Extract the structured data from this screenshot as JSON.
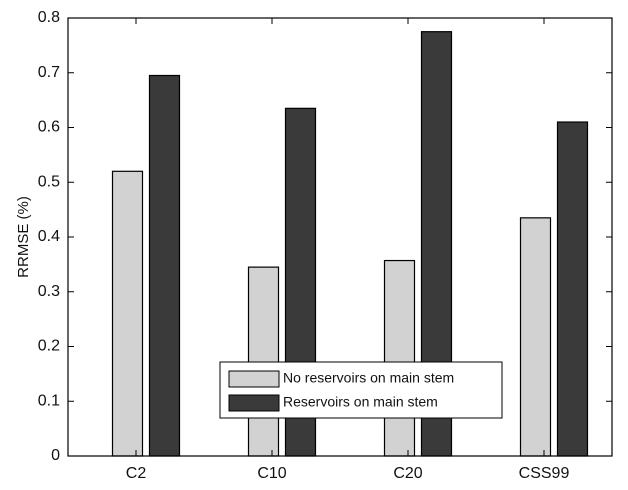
{
  "chart_data": {
    "type": "bar",
    "y_label": "RRMSE (%)",
    "categories": [
      "C2",
      "C10",
      "C20",
      "CSS99"
    ],
    "series": [
      {
        "name": "No reservoirs on main stem",
        "color": "#d2d2d2",
        "values": [
          0.52,
          0.345,
          0.357,
          0.435
        ]
      },
      {
        "name": "Reservoirs on main stem",
        "color": "#3a3a3a",
        "values": [
          0.695,
          0.635,
          0.775,
          0.61
        ]
      }
    ],
    "ylim": [
      0,
      0.8
    ],
    "yticks": [
      0,
      0.1,
      0.2,
      0.3,
      0.4,
      0.5,
      0.6,
      0.7,
      0.8
    ]
  }
}
